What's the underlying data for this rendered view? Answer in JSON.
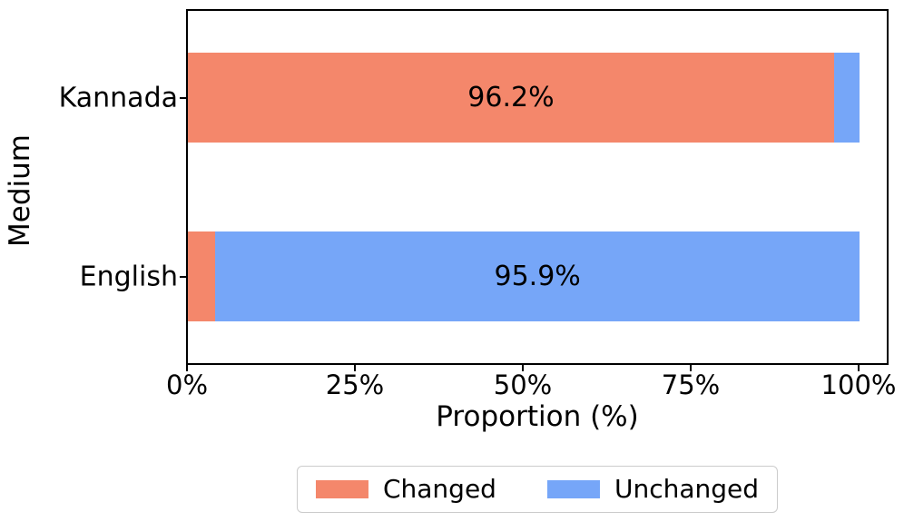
{
  "figure": {
    "background": "#ffffff"
  },
  "chart_data": {
    "type": "bar",
    "orientation": "horizontal",
    "stacked": true,
    "title": "",
    "xlabel": "Proportion (%)",
    "ylabel": "Medium",
    "categories": [
      "Kannada",
      "English"
    ],
    "series": [
      {
        "name": "Changed",
        "color": "#F4876B",
        "values": [
          96.2,
          4.1
        ],
        "labels": [
          "96.2%",
          ""
        ]
      },
      {
        "name": "Unchanged",
        "color": "#76A6F8",
        "values": [
          3.8,
          95.9
        ],
        "labels": [
          "",
          "95.9%"
        ]
      }
    ],
    "x_ticks": [
      {
        "value": 0,
        "label": "0%"
      },
      {
        "value": 25,
        "label": "25%"
      },
      {
        "value": 50,
        "label": "50%"
      },
      {
        "value": 75,
        "label": "75%"
      },
      {
        "value": 100,
        "label": "100%"
      }
    ],
    "xlim": [
      0,
      104.6
    ],
    "grid": false,
    "legend_position": "bottom-center"
  }
}
